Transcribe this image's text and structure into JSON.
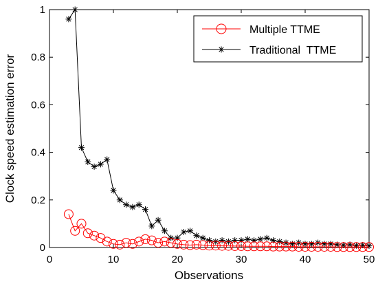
{
  "chart_data": {
    "type": "line",
    "xlabel": "Observations",
    "ylabel": "Clock speed estimation error",
    "xlim": [
      0,
      50
    ],
    "ylim": [
      0,
      1
    ],
    "x_ticks": [
      0,
      10,
      20,
      30,
      40,
      50
    ],
    "y_ticks": [
      0,
      0.2,
      0.4,
      0.6,
      0.8,
      1
    ],
    "y_tick_labels": [
      "0",
      "0.2",
      "0.4",
      "0.6",
      "0.8",
      "1"
    ],
    "grid": false,
    "legend_position": "top-right",
    "series": [
      {
        "name": "Multiple TTME",
        "color": "#ff0000",
        "marker": "circle",
        "x": [
          3,
          4,
          5,
          6,
          7,
          8,
          9,
          10,
          11,
          12,
          13,
          14,
          15,
          16,
          17,
          18,
          19,
          20,
          21,
          22,
          23,
          24,
          25,
          26,
          27,
          28,
          29,
          30,
          31,
          32,
          33,
          34,
          35,
          36,
          37,
          38,
          39,
          40,
          41,
          42,
          43,
          44,
          45,
          46,
          47,
          48,
          49,
          50
        ],
        "values": [
          0.14,
          0.07,
          0.1,
          0.06,
          0.05,
          0.04,
          0.025,
          0.015,
          0.012,
          0.02,
          0.015,
          0.025,
          0.035,
          0.03,
          0.02,
          0.025,
          0.02,
          0.015,
          0.012,
          0.01,
          0.012,
          0.01,
          0.008,
          0.008,
          0.007,
          0.007,
          0.006,
          0.006,
          0.005,
          0.005,
          0.005,
          0.005,
          0.004,
          0.004,
          0.004,
          0.004,
          0.003,
          0.003,
          0.003,
          0.003,
          0.003,
          0.003,
          0.002,
          0.002,
          0.002,
          0.002,
          0.002,
          0.002
        ]
      },
      {
        "name": "Traditional  TTME",
        "color": "#000000",
        "marker": "star",
        "x": [
          3,
          4,
          5,
          6,
          7,
          8,
          9,
          10,
          11,
          12,
          13,
          14,
          15,
          16,
          17,
          18,
          19,
          20,
          21,
          22,
          23,
          24,
          25,
          26,
          27,
          28,
          29,
          30,
          31,
          32,
          33,
          34,
          35,
          36,
          37,
          38,
          39,
          40,
          41,
          42,
          43,
          44,
          45,
          46,
          47,
          48,
          49,
          50
        ],
        "values": [
          0.96,
          1.0,
          0.42,
          0.36,
          0.34,
          0.35,
          0.37,
          0.24,
          0.2,
          0.18,
          0.17,
          0.18,
          0.16,
          0.09,
          0.115,
          0.07,
          0.04,
          0.04,
          0.065,
          0.07,
          0.05,
          0.04,
          0.03,
          0.025,
          0.03,
          0.025,
          0.03,
          0.03,
          0.035,
          0.03,
          0.035,
          0.04,
          0.03,
          0.025,
          0.02,
          0.015,
          0.02,
          0.015,
          0.015,
          0.02,
          0.015,
          0.015,
          0.012,
          0.01,
          0.012,
          0.008,
          0.01,
          0.007
        ]
      }
    ]
  }
}
